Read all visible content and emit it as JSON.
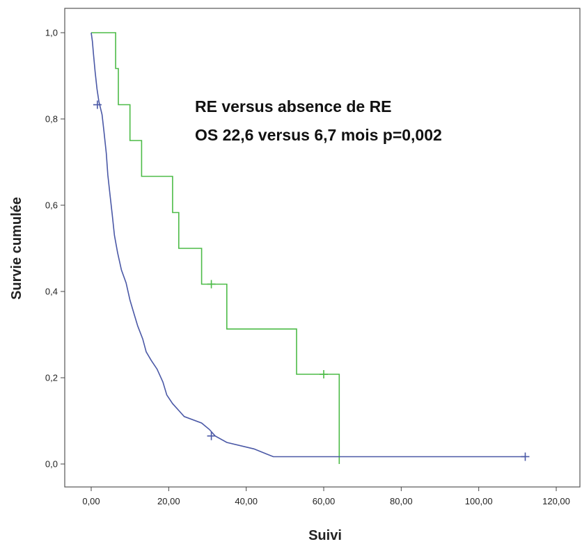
{
  "chart_data": {
    "type": "line",
    "subtype": "kaplan-meier step",
    "xlabel": "Suivi",
    "ylabel": "Survie cumulée",
    "xlim": [
      0,
      120
    ],
    "ylim": [
      0,
      1
    ],
    "x_ticks": [
      "0,00",
      "20,00",
      "40,00",
      "60,00",
      "80,00",
      "100,00",
      "120,00"
    ],
    "y_ticks": [
      "0,0",
      "0,2",
      "0,4",
      "0,6",
      "0,8",
      "1,0"
    ],
    "annotation_lines": [
      "RE versus absence de RE",
      "OS 22,6 versus 6,7 mois p=0,002"
    ],
    "grid": false,
    "legend": "none",
    "series": [
      {
        "color": "#4cbb47",
        "steps": [
          [
            0,
            1.0
          ],
          [
            6.3,
            1.0
          ],
          [
            6.3,
            0.917
          ],
          [
            7.0,
            0.917
          ],
          [
            7.0,
            0.833
          ],
          [
            10.0,
            0.833
          ],
          [
            10.0,
            0.75
          ],
          [
            13.0,
            0.75
          ],
          [
            13.0,
            0.667
          ],
          [
            21.0,
            0.667
          ],
          [
            21.0,
            0.583
          ],
          [
            22.6,
            0.583
          ],
          [
            22.6,
            0.5
          ],
          [
            28.5,
            0.5
          ],
          [
            28.5,
            0.417
          ],
          [
            35.0,
            0.417
          ],
          [
            35.0,
            0.313
          ],
          [
            53.0,
            0.313
          ],
          [
            53.0,
            0.208
          ],
          [
            64.0,
            0.208
          ],
          [
            64.0,
            0.0
          ]
        ],
        "censored": [
          [
            31.0,
            0.417
          ],
          [
            60.0,
            0.208
          ]
        ]
      },
      {
        "color": "#4a58a6",
        "steps": [
          [
            0,
            1.0
          ],
          [
            0.3,
            0.98
          ],
          [
            0.6,
            0.95
          ],
          [
            1.0,
            0.91
          ],
          [
            1.5,
            0.87
          ],
          [
            2.0,
            0.84
          ],
          [
            2.8,
            0.81
          ],
          [
            3.3,
            0.77
          ],
          [
            3.9,
            0.72
          ],
          [
            4.3,
            0.67
          ],
          [
            4.9,
            0.62
          ],
          [
            5.4,
            0.58
          ],
          [
            6.0,
            0.53
          ],
          [
            6.8,
            0.49
          ],
          [
            7.8,
            0.45
          ],
          [
            9.0,
            0.42
          ],
          [
            10.0,
            0.38
          ],
          [
            11.0,
            0.35
          ],
          [
            12.0,
            0.32
          ],
          [
            13.3,
            0.29
          ],
          [
            14.2,
            0.26
          ],
          [
            15.5,
            0.24
          ],
          [
            17.0,
            0.22
          ],
          [
            18.5,
            0.19
          ],
          [
            19.5,
            0.16
          ],
          [
            21.0,
            0.14
          ],
          [
            22.5,
            0.125
          ],
          [
            24.0,
            0.11
          ],
          [
            28.5,
            0.095
          ],
          [
            30.5,
            0.08
          ],
          [
            32.0,
            0.065
          ],
          [
            35.0,
            0.05
          ],
          [
            42.0,
            0.035
          ],
          [
            47.0,
            0.017
          ],
          [
            112.0,
            0.017
          ]
        ],
        "censored": [
          [
            1.6,
            0.833
          ],
          [
            31.0,
            0.065
          ],
          [
            112.0,
            0.017
          ]
        ]
      }
    ]
  }
}
